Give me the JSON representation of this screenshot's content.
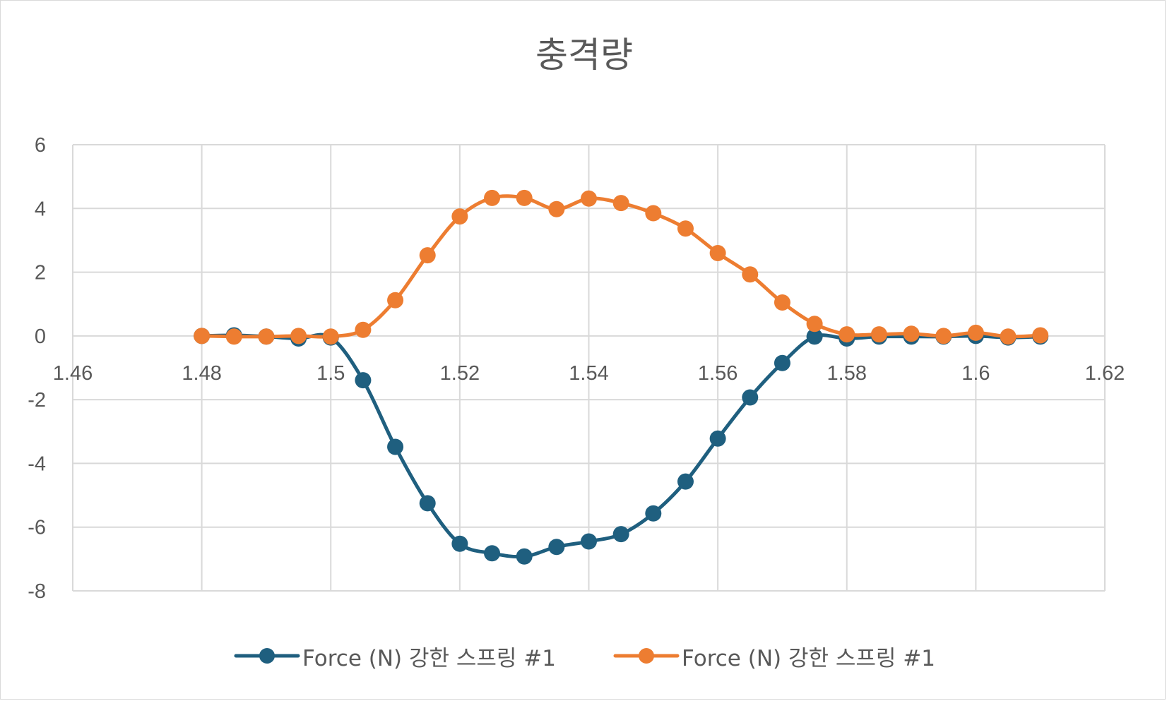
{
  "chart_data": {
    "type": "scatter",
    "title": "충격량",
    "xlabel": "",
    "ylabel": "",
    "xlim": [
      1.46,
      1.62
    ],
    "ylim": [
      -8,
      6
    ],
    "x_ticks": [
      "1.46",
      "1.48",
      "1.5",
      "1.52",
      "1.54",
      "1.56",
      "1.58",
      "1.6",
      "1.62"
    ],
    "y_ticks": [
      "6",
      "4",
      "2",
      "0",
      "-2",
      "-4",
      "-6",
      "-8"
    ],
    "x_tick_values": [
      1.46,
      1.48,
      1.5,
      1.52,
      1.54,
      1.56,
      1.58,
      1.6,
      1.62
    ],
    "y_tick_values": [
      6,
      4,
      2,
      0,
      -2,
      -4,
      -6,
      -8
    ],
    "grid": true,
    "smooth_lines": true,
    "legend_position": "bottom",
    "series": [
      {
        "name": "Force (N) 강한 스프링 #1",
        "color": "#1f5f7f",
        "points": [
          [
            1.48,
            0.0
          ],
          [
            1.485,
            0.02
          ],
          [
            1.49,
            -0.02
          ],
          [
            1.495,
            -0.08
          ],
          [
            1.5,
            -0.05
          ],
          [
            1.505,
            -1.39
          ],
          [
            1.51,
            -3.48
          ],
          [
            1.515,
            -5.25
          ],
          [
            1.52,
            -6.52
          ],
          [
            1.525,
            -6.82
          ],
          [
            1.53,
            -6.92
          ],
          [
            1.535,
            -6.62
          ],
          [
            1.54,
            -6.45
          ],
          [
            1.545,
            -6.22
          ],
          [
            1.55,
            -5.57
          ],
          [
            1.555,
            -4.57
          ],
          [
            1.56,
            -3.22
          ],
          [
            1.565,
            -1.93
          ],
          [
            1.57,
            -0.85
          ],
          [
            1.575,
            -0.02
          ],
          [
            1.58,
            -0.08
          ],
          [
            1.585,
            -0.02
          ],
          [
            1.59,
            -0.02
          ],
          [
            1.595,
            -0.02
          ],
          [
            1.6,
            0.0
          ],
          [
            1.605,
            -0.05
          ],
          [
            1.61,
            -0.02
          ]
        ]
      },
      {
        "name": "Force (N) 강한 스프링 #1",
        "color": "#ed7d31",
        "points": [
          [
            1.48,
            0.0
          ],
          [
            1.485,
            -0.02
          ],
          [
            1.49,
            -0.02
          ],
          [
            1.495,
            0.0
          ],
          [
            1.5,
            -0.02
          ],
          [
            1.505,
            0.19
          ],
          [
            1.51,
            1.12
          ],
          [
            1.515,
            2.53
          ],
          [
            1.52,
            3.75
          ],
          [
            1.525,
            4.33
          ],
          [
            1.53,
            4.33
          ],
          [
            1.535,
            3.98
          ],
          [
            1.54,
            4.31
          ],
          [
            1.545,
            4.17
          ],
          [
            1.55,
            3.85
          ],
          [
            1.555,
            3.37
          ],
          [
            1.56,
            2.6
          ],
          [
            1.565,
            1.93
          ],
          [
            1.57,
            1.05
          ],
          [
            1.575,
            0.38
          ],
          [
            1.58,
            0.05
          ],
          [
            1.585,
            0.05
          ],
          [
            1.59,
            0.07
          ],
          [
            1.595,
            0.0
          ],
          [
            1.6,
            0.1
          ],
          [
            1.605,
            -0.02
          ],
          [
            1.61,
            0.02
          ]
        ]
      }
    ]
  }
}
